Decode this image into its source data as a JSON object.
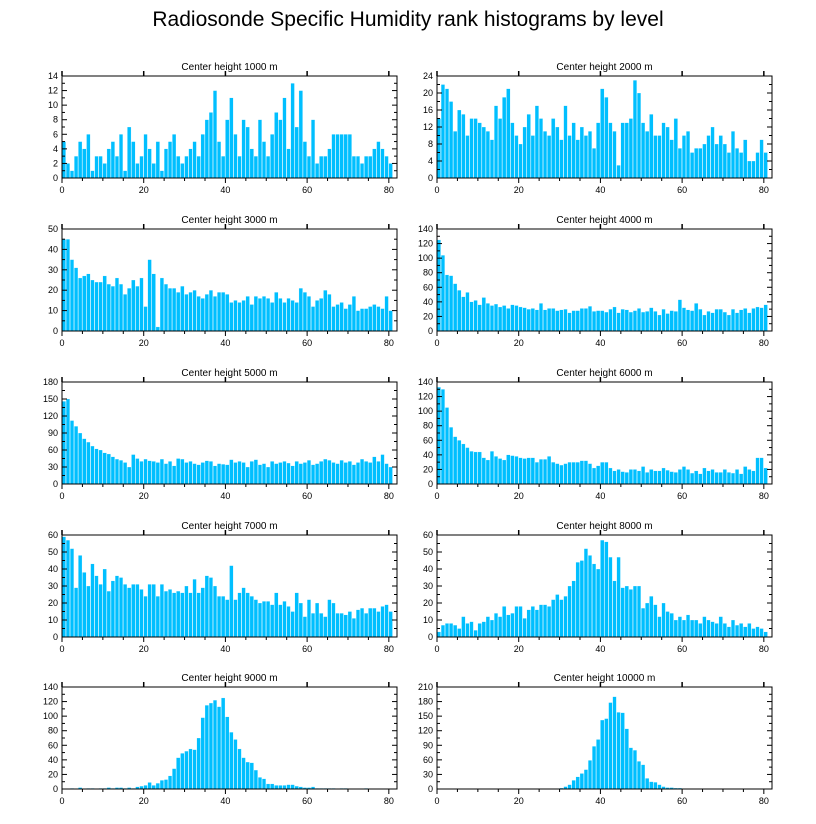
{
  "title": "Radiosonde Specific Humidity rank histograms by level",
  "bar_color": "#00BFFF",
  "chart_data": [
    {
      "type": "bar",
      "title": "Center height 1000 m",
      "xlim": [
        0,
        82
      ],
      "xticks": [
        0,
        20,
        40,
        60,
        80
      ],
      "ylim": [
        0,
        14
      ],
      "yticks": [
        0,
        2,
        4,
        6,
        8,
        10,
        12,
        14
      ],
      "values": [
        5,
        2,
        1,
        3,
        5,
        4,
        6,
        1,
        3,
        3,
        2,
        4,
        5,
        3,
        6,
        1,
        7,
        5,
        2,
        3,
        6,
        4,
        2,
        5,
        1,
        4,
        5,
        6,
        3,
        2,
        3,
        4,
        5,
        3,
        6,
        8,
        9,
        12,
        5,
        3,
        8,
        11,
        6,
        3,
        8,
        7,
        4,
        3,
        8,
        5,
        3,
        6,
        9,
        8,
        11,
        4,
        13,
        7,
        12,
        5,
        3,
        8,
        2,
        3,
        3,
        4,
        6,
        6,
        6,
        6,
        6,
        3,
        3,
        2,
        3,
        3,
        4,
        5,
        4,
        3,
        2
      ],
      "x_start": 0.5
    },
    {
      "type": "bar",
      "title": "Center height 2000 m",
      "xlim": [
        0,
        82
      ],
      "xticks": [
        0,
        20,
        40,
        60,
        80
      ],
      "ylim": [
        0,
        24
      ],
      "yticks": [
        0,
        4,
        8,
        12,
        16,
        20,
        24
      ],
      "values": [
        14,
        22,
        21,
        18,
        11,
        16,
        15,
        10,
        14,
        14,
        13,
        12,
        11,
        9,
        17,
        14,
        19,
        21,
        13,
        10,
        8,
        12,
        15,
        10,
        17,
        14,
        11,
        10,
        14,
        12,
        9,
        17,
        10,
        13,
        9,
        12,
        10,
        11,
        7,
        13,
        21,
        19,
        13,
        11,
        3,
        13,
        13,
        14,
        23,
        20,
        13,
        11,
        15,
        10,
        10,
        13,
        12,
        9,
        14,
        7,
        10,
        11,
        6,
        7,
        7,
        8,
        10,
        12,
        8,
        10,
        8,
        6,
        11,
        7,
        6,
        9,
        4,
        4,
        6,
        9,
        6
      ],
      "x_start": 0.5
    },
    {
      "type": "bar",
      "title": "Center height 3000 m",
      "xlim": [
        0,
        82
      ],
      "xticks": [
        0,
        20,
        40,
        60,
        80
      ],
      "ylim": [
        0,
        50
      ],
      "yticks": [
        0,
        10,
        20,
        30,
        40,
        50
      ],
      "values": [
        45,
        45,
        35,
        31,
        26,
        27,
        28,
        25,
        24,
        24,
        27,
        23,
        22,
        26,
        23,
        18,
        21,
        25,
        22,
        26,
        12,
        35,
        28,
        2,
        26,
        23,
        21,
        21,
        19,
        22,
        18,
        19,
        20,
        17,
        16,
        18,
        20,
        17,
        19,
        19,
        18,
        14,
        15,
        14,
        15,
        17,
        13,
        17,
        16,
        17,
        16,
        14,
        19,
        16,
        14,
        16,
        15,
        14,
        21,
        19,
        17,
        12,
        15,
        16,
        20,
        18,
        12,
        13,
        14,
        11,
        13,
        17,
        10,
        11,
        11,
        12,
        13,
        12,
        11,
        17,
        10
      ],
      "x_start": 0.5
    },
    {
      "type": "bar",
      "title": "Center height 4000 m",
      "xlim": [
        0,
        82
      ],
      "xticks": [
        0,
        20,
        40,
        60,
        80
      ],
      "ylim": [
        0,
        140
      ],
      "yticks": [
        0,
        20,
        40,
        60,
        80,
        100,
        120,
        140
      ],
      "values": [
        125,
        104,
        77,
        76,
        65,
        56,
        47,
        53,
        40,
        42,
        36,
        46,
        38,
        35,
        37,
        33,
        35,
        31,
        36,
        35,
        33,
        32,
        30,
        31,
        29,
        38,
        29,
        31,
        31,
        28,
        29,
        30,
        25,
        28,
        28,
        31,
        31,
        34,
        27,
        28,
        28,
        26,
        30,
        33,
        25,
        30,
        29,
        26,
        28,
        31,
        26,
        27,
        32,
        27,
        22,
        30,
        24,
        28,
        27,
        43,
        32,
        29,
        28,
        38,
        30,
        22,
        27,
        25,
        30,
        30,
        26,
        22,
        30,
        25,
        29,
        31,
        25,
        31,
        33,
        32,
        36
      ],
      "x_start": 0.5
    },
    {
      "type": "bar",
      "title": "Center height 5000 m",
      "xlim": [
        0,
        82
      ],
      "xticks": [
        0,
        20,
        40,
        60,
        80
      ],
      "ylim": [
        0,
        180
      ],
      "yticks": [
        0,
        30,
        60,
        90,
        120,
        150,
        180
      ],
      "values": [
        146,
        150,
        112,
        102,
        90,
        80,
        74,
        67,
        62,
        60,
        55,
        53,
        48,
        44,
        42,
        38,
        30,
        52,
        45,
        40,
        44,
        41,
        40,
        38,
        44,
        36,
        40,
        32,
        45,
        44,
        38,
        40,
        36,
        34,
        38,
        41,
        40,
        32,
        36,
        35,
        34,
        43,
        38,
        40,
        38,
        30,
        40,
        43,
        34,
        36,
        30,
        40,
        36,
        38,
        40,
        37,
        32,
        40,
        36,
        38,
        42,
        34,
        36,
        40,
        44,
        42,
        38,
        36,
        42,
        38,
        40,
        34,
        38,
        44,
        40,
        38,
        48,
        40,
        52,
        36,
        30
      ],
      "x_start": 0.5
    },
    {
      "type": "bar",
      "title": "Center height 6000 m",
      "xlim": [
        0,
        82
      ],
      "xticks": [
        0,
        20,
        40,
        60,
        80
      ],
      "ylim": [
        0,
        140
      ],
      "yticks": [
        0,
        20,
        40,
        60,
        80,
        100,
        120,
        140
      ],
      "values": [
        133,
        130,
        105,
        78,
        65,
        60,
        55,
        50,
        45,
        44,
        44,
        36,
        33,
        45,
        38,
        35,
        33,
        40,
        39,
        38,
        36,
        35,
        36,
        36,
        30,
        34,
        34,
        38,
        30,
        28,
        26,
        28,
        30,
        30,
        30,
        32,
        32,
        28,
        22,
        25,
        30,
        30,
        22,
        18,
        20,
        17,
        16,
        20,
        20,
        18,
        24,
        16,
        20,
        18,
        18,
        22,
        19,
        17,
        16,
        20,
        24,
        20,
        15,
        18,
        14,
        22,
        18,
        20,
        16,
        16,
        20,
        16,
        15,
        20,
        14,
        24,
        20,
        18,
        36,
        36,
        22
      ],
      "x_start": 0.5
    },
    {
      "type": "bar",
      "title": "Center height 7000 m",
      "xlim": [
        0,
        82
      ],
      "xticks": [
        0,
        20,
        40,
        60,
        80
      ],
      "ylim": [
        0,
        60
      ],
      "yticks": [
        0,
        10,
        20,
        30,
        40,
        50,
        60
      ],
      "values": [
        59,
        57,
        52,
        29,
        48,
        38,
        30,
        43,
        36,
        31,
        40,
        27,
        33,
        36,
        35,
        31,
        29,
        31,
        31,
        28,
        24,
        31,
        31,
        24,
        31,
        27,
        28,
        26,
        27,
        26,
        30,
        26,
        34,
        26,
        29,
        36,
        35,
        30,
        24,
        24,
        22,
        42,
        22,
        26,
        29,
        26,
        24,
        22,
        20,
        21,
        21,
        19,
        26,
        19,
        21,
        18,
        15,
        26,
        20,
        12,
        22,
        14,
        20,
        14,
        12,
        22,
        20,
        14,
        14,
        13,
        15,
        11,
        16,
        17,
        14,
        17,
        17,
        15,
        18,
        19,
        15
      ],
      "x_start": 0.5
    },
    {
      "type": "bar",
      "title": "Center height 8000 m",
      "xlim": [
        0,
        82
      ],
      "xticks": [
        0,
        20,
        40,
        60,
        80
      ],
      "ylim": [
        0,
        60
      ],
      "yticks": [
        0,
        10,
        20,
        30,
        40,
        50,
        60
      ],
      "values": [
        3,
        7,
        8,
        8,
        7,
        5,
        12,
        8,
        9,
        4,
        8,
        9,
        12,
        10,
        14,
        12,
        18,
        13,
        14,
        18,
        18,
        11,
        16,
        18,
        16,
        19,
        19,
        18,
        22,
        25,
        22,
        24,
        30,
        33,
        44,
        45,
        52,
        48,
        43,
        40,
        57,
        56,
        47,
        33,
        47,
        29,
        30,
        28,
        30,
        30,
        17,
        20,
        24,
        19,
        12,
        20,
        15,
        14,
        10,
        12,
        10,
        13,
        10,
        10,
        8,
        12,
        10,
        9,
        8,
        12,
        8,
        6,
        10,
        7,
        8,
        6,
        8,
        5,
        6,
        5,
        3
      ],
      "x_start": 0.5
    },
    {
      "type": "bar",
      "title": "Center height 9000 m",
      "xlim": [
        0,
        82
      ],
      "xticks": [
        0,
        20,
        40,
        60,
        80
      ],
      "ylim": [
        0,
        140
      ],
      "yticks": [
        0,
        20,
        40,
        60,
        80,
        100,
        120,
        140
      ],
      "values": [
        0,
        0,
        1,
        0,
        2,
        0,
        1,
        1,
        0,
        1,
        1,
        2,
        1,
        2,
        2,
        1,
        2,
        1,
        3,
        4,
        5,
        9,
        5,
        8,
        12,
        13,
        18,
        28,
        43,
        49,
        52,
        55,
        54,
        70,
        98,
        115,
        118,
        122,
        113,
        125,
        99,
        78,
        68,
        55,
        43,
        37,
        36,
        26,
        16,
        14,
        7,
        7,
        5,
        5,
        5,
        6,
        6,
        4,
        3,
        2,
        2,
        3,
        1,
        1,
        1,
        1,
        1,
        0,
        1,
        1,
        0,
        0,
        0,
        0,
        1,
        0,
        0,
        0,
        0,
        0,
        0
      ],
      "x_start": 0.5
    },
    {
      "type": "bar",
      "title": "Center height 10000 m",
      "xlim": [
        0,
        82
      ],
      "xticks": [
        0,
        20,
        40,
        60,
        80
      ],
      "ylim": [
        0,
        210
      ],
      "yticks": [
        0,
        30,
        60,
        90,
        120,
        150,
        180,
        210
      ],
      "values": [
        0,
        0,
        0,
        0,
        0,
        0,
        0,
        0,
        0,
        0,
        0,
        0,
        0,
        0,
        0,
        0,
        0,
        0,
        0,
        0,
        0,
        0,
        0,
        0,
        0,
        0,
        0,
        0,
        0,
        1,
        2,
        5,
        9,
        18,
        25,
        32,
        40,
        59,
        88,
        102,
        142,
        145,
        178,
        190,
        158,
        157,
        124,
        85,
        80,
        57,
        50,
        22,
        15,
        14,
        9,
        5,
        3,
        3,
        2,
        2,
        1,
        1,
        1,
        0,
        0,
        1,
        0,
        0,
        0,
        0,
        0,
        0,
        0,
        0,
        0,
        0,
        0,
        0,
        0,
        0,
        0
      ],
      "x_start": 0.5
    }
  ]
}
